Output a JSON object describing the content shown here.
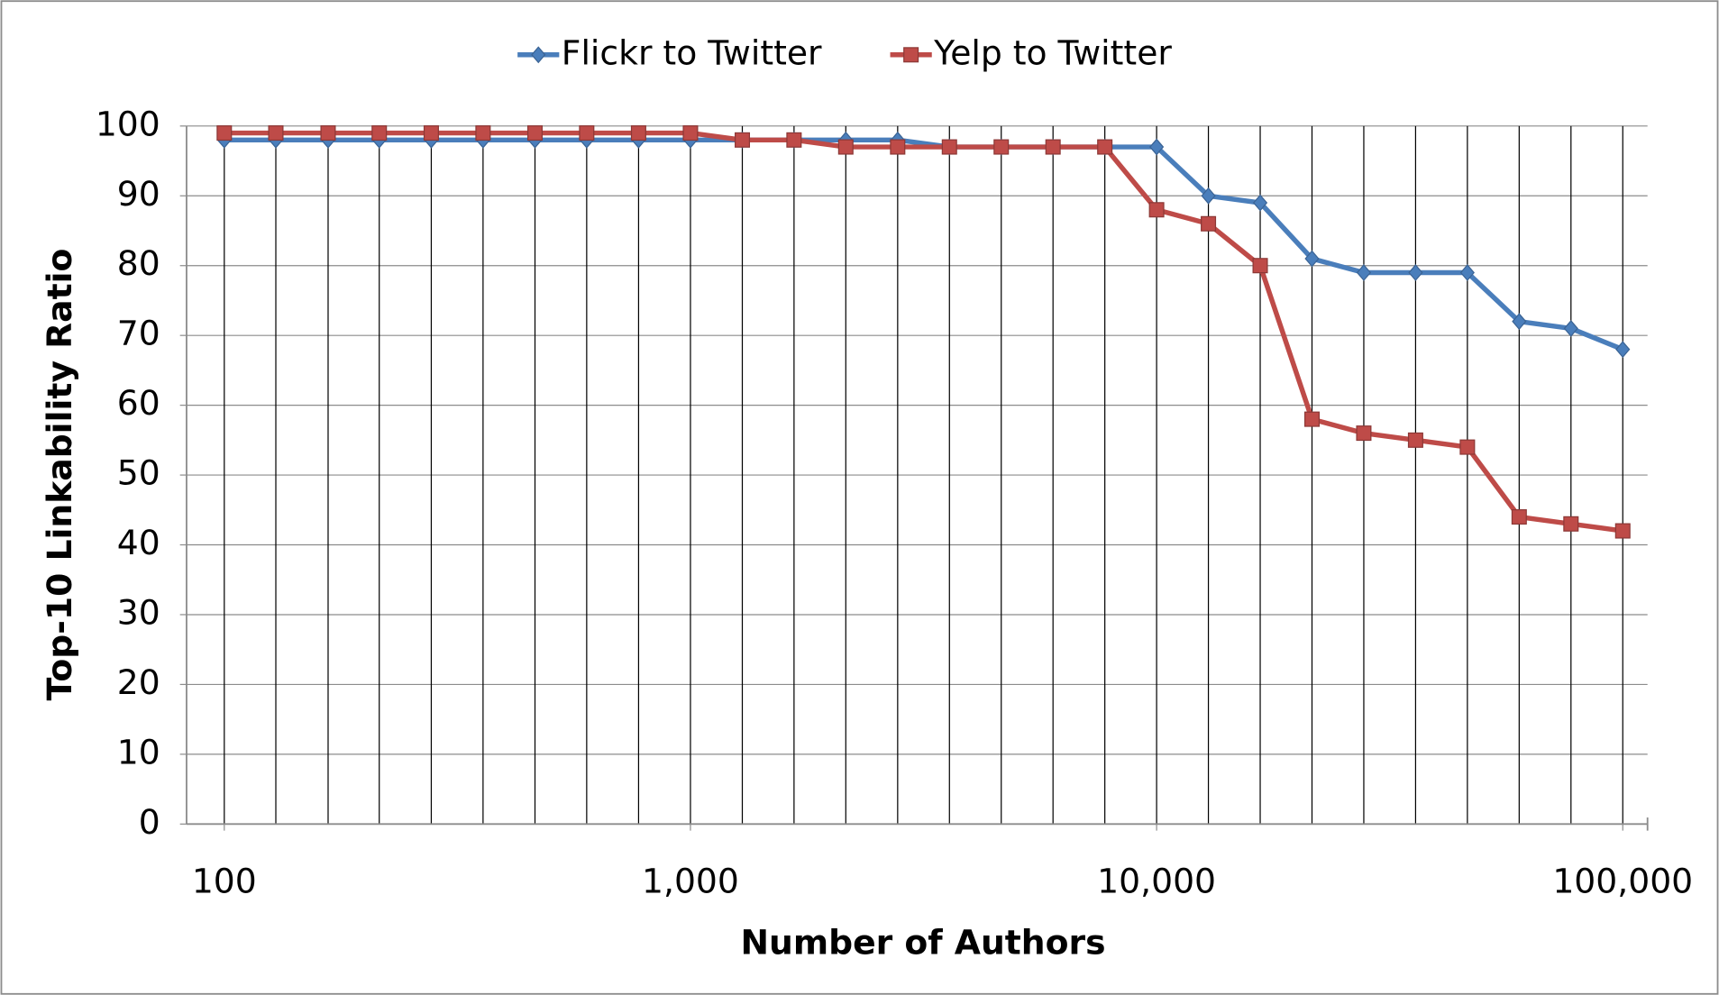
{
  "chart_data": {
    "type": "line",
    "x_label": "Number of Authors",
    "y_label": "Top-10 Linkability Ratio",
    "x": [
      100,
      129,
      167,
      215,
      278,
      359,
      464,
      599,
      774,
      1000,
      1292,
      1668,
      2154,
      2783,
      3594,
      4642,
      5995,
      7743,
      10000,
      12915,
      16681,
      21544,
      27826,
      35938,
      46416,
      59948,
      77426,
      100000
    ],
    "series": [
      {
        "name": "Flickr to Twitter",
        "color": "#4a7ebb",
        "marker": "diamond",
        "values": [
          98,
          98,
          98,
          98,
          98,
          98,
          98,
          98,
          98,
          98,
          98,
          98,
          98,
          98,
          97,
          97,
          97,
          97,
          97,
          90,
          89,
          81,
          79,
          79,
          79,
          72,
          71,
          68
        ]
      },
      {
        "name": "Yelp to Twitter",
        "color": "#be4b48",
        "marker": "square",
        "values": [
          99,
          99,
          99,
          99,
          99,
          99,
          99,
          99,
          99,
          99,
          98,
          98,
          97,
          97,
          97,
          97,
          97,
          97,
          88,
          86,
          80,
          58,
          56,
          55,
          54,
          44,
          43,
          42
        ]
      }
    ],
    "xscale": "log",
    "xlim": [
      83,
      113000
    ],
    "xticks": [
      100,
      {
        "value": 1000,
        "label": "1,000"
      },
      {
        "value": 10000,
        "label": "10,000"
      },
      {
        "value": 100000,
        "label": "100,000"
      }
    ],
    "ylim": [
      0,
      100
    ],
    "yticks": [
      0,
      10,
      20,
      30,
      40,
      50,
      60,
      70,
      80,
      90,
      100
    ],
    "grid": true,
    "legend": "top"
  }
}
